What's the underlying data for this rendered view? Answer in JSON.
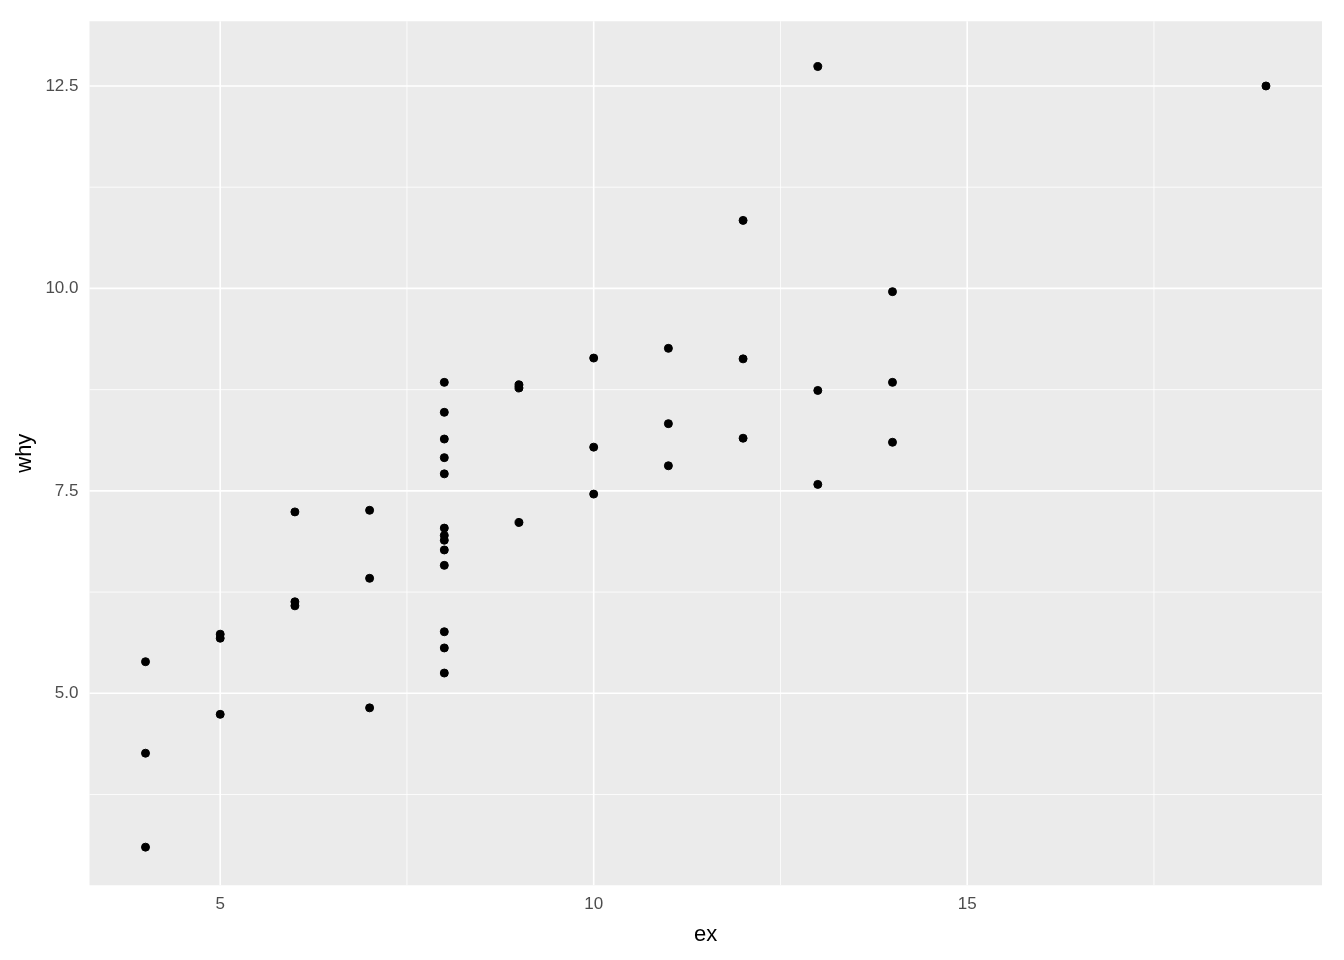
{
  "chart_data": {
    "type": "scatter",
    "xlabel": "ex",
    "ylabel": "why",
    "x": [
      10,
      8,
      13,
      9,
      11,
      14,
      6,
      4,
      12,
      7,
      5,
      10,
      8,
      13,
      9,
      11,
      14,
      6,
      4,
      12,
      7,
      5,
      10,
      8,
      13,
      9,
      11,
      14,
      6,
      4,
      12,
      7,
      5,
      8,
      8,
      8,
      8,
      8,
      8,
      8,
      19,
      8,
      8,
      8
    ],
    "values": [
      8.04,
      6.95,
      7.58,
      8.81,
      8.33,
      9.96,
      7.24,
      4.26,
      10.84,
      4.82,
      5.68,
      9.14,
      8.14,
      8.74,
      8.77,
      9.26,
      8.1,
      6.13,
      3.1,
      9.13,
      7.26,
      4.74,
      7.46,
      6.77,
      12.74,
      7.11,
      7.81,
      8.84,
      6.08,
      5.39,
      8.15,
      6.42,
      5.73,
      6.58,
      5.76,
      7.71,
      8.84,
      8.47,
      7.04,
      5.25,
      12.5,
      5.56,
      7.91,
      6.89
    ],
    "color": "#000000",
    "marker": "circle",
    "xlim": [
      3.25,
      19.75
    ],
    "xticks": [
      5,
      10,
      15
    ],
    "ylim": [
      2.63,
      13.3
    ],
    "yticks": [
      {
        "value": 5,
        "label": "5.0"
      },
      {
        "value": 7.5,
        "label": "7.5"
      },
      {
        "value": 10,
        "label": "10.0"
      },
      {
        "value": 12.5,
        "label": "12.5"
      }
    ],
    "grid": true,
    "legend": false
  }
}
